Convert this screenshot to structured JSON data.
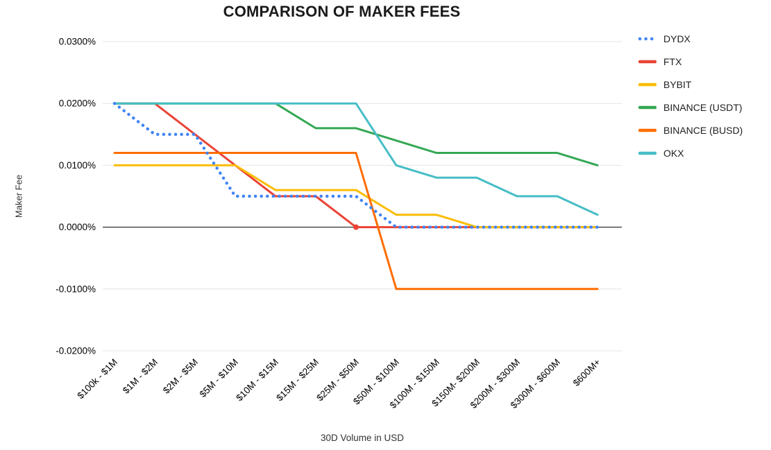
{
  "page": {
    "title": "COMPARISON OF MAKER FEES"
  },
  "chart_data": {
    "type": "line",
    "title": "COMPARISON OF MAKER FEES",
    "xlabel": "30D Volume in USD",
    "ylabel": "Maker Fee",
    "legend_position": "right",
    "grid": true,
    "unit": "percent",
    "ylim": [
      -0.02,
      0.03
    ],
    "y_ticks": [
      {
        "label": "0.0300%",
        "value": 0.03
      },
      {
        "label": "0.0200%",
        "value": 0.02
      },
      {
        "label": "0.0100%",
        "value": 0.01
      },
      {
        "label": "0.0000%",
        "value": 0.0
      },
      {
        "label": "-0.0100%",
        "value": -0.01
      },
      {
        "label": "-0.0200%",
        "value": -0.02
      }
    ],
    "categories": [
      "$100k - $1M",
      "$1M - $2M",
      "$2M - $5M",
      "$5M - $10M",
      "$10M - $15M",
      "$15M - $25M",
      "$25M - $50M",
      "$50M - $100M",
      "$100M - $150M",
      "$150M- $200M",
      "$200M - $300M",
      "$300M - $600M",
      "$600M+"
    ],
    "series": [
      {
        "name": "DYDX",
        "color": "#4285F4",
        "dash": "dotted",
        "values": [
          0.02,
          0.015,
          0.015,
          0.005,
          0.005,
          0.005,
          0.005,
          0.0,
          0.0,
          0.0,
          0.0,
          0.0,
          0.0
        ]
      },
      {
        "name": "FTX",
        "color": "#EA4335",
        "dash": "solid",
        "values": [
          0.02,
          0.02,
          0.015,
          0.01,
          0.005,
          0.005,
          0.0,
          0.0,
          0.0,
          0.0,
          0.0,
          0.0,
          0.0
        ]
      },
      {
        "name": "BYBIT",
        "color": "#FBBC04",
        "dash": "solid",
        "values": [
          0.01,
          0.01,
          0.01,
          0.01,
          0.006,
          0.006,
          0.006,
          0.002,
          0.002,
          0.0,
          0.0,
          0.0,
          0.0
        ]
      },
      {
        "name": "BINANCE (USDT)",
        "color": "#34A853",
        "dash": "solid",
        "values": [
          0.02,
          0.02,
          0.02,
          0.02,
          0.02,
          0.016,
          0.016,
          0.014,
          0.012,
          0.012,
          0.012,
          0.012,
          0.01
        ]
      },
      {
        "name": "BINANCE (BUSD)",
        "color": "#FF6D01",
        "dash": "solid",
        "values": [
          0.012,
          0.012,
          0.012,
          0.012,
          0.012,
          0.012,
          0.012,
          -0.01,
          -0.01,
          -0.01,
          -0.01,
          -0.01,
          -0.01
        ]
      },
      {
        "name": "OKX",
        "color": "#46BDC6",
        "dash": "solid",
        "values": [
          0.02,
          0.02,
          0.02,
          0.02,
          0.02,
          0.02,
          0.02,
          0.01,
          0.008,
          0.008,
          0.005,
          0.005,
          0.002
        ]
      }
    ],
    "markers": [
      {
        "series": "FTX",
        "category_index": 6
      }
    ]
  }
}
